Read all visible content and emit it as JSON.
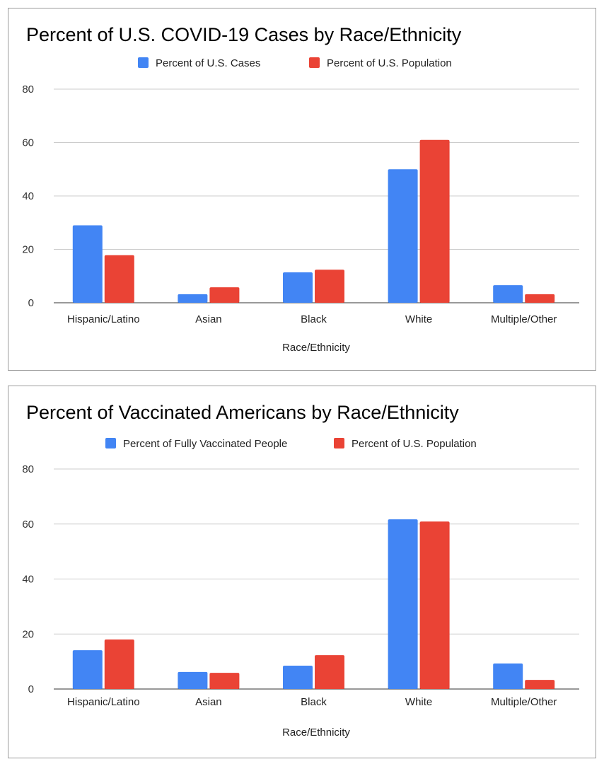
{
  "chart_data": [
    {
      "type": "bar",
      "title": "Percent of U.S. COVID-19 Cases by Race/Ethnicity",
      "xlabel": "Race/Ethnicity",
      "ylabel": "",
      "ylim": [
        0,
        80
      ],
      "yticks": [
        "0",
        "20",
        "40",
        "60",
        "80"
      ],
      "grid": true,
      "legend": "top",
      "categories": [
        "Hispanic/Latino",
        "Asian",
        "Black",
        "White",
        "Multiple/Other"
      ],
      "series": [
        {
          "name": "Percent of U.S. Cases",
          "color": "#4285f4",
          "values": [
            29,
            3.2,
            11.4,
            50,
            6.6
          ]
        },
        {
          "name": "Percent of U.S. Population",
          "color": "#ea4335",
          "values": [
            17.8,
            5.8,
            12.4,
            61,
            3.2
          ]
        }
      ]
    },
    {
      "type": "bar",
      "title": "Percent of Vaccinated Americans by Race/Ethnicity",
      "xlabel": "Race/Ethnicity",
      "ylabel": "",
      "ylim": [
        0,
        80
      ],
      "yticks": [
        "0",
        "20",
        "40",
        "60",
        "80"
      ],
      "grid": true,
      "legend": "top",
      "categories": [
        "Hispanic/Latino",
        "Asian",
        "Black",
        "White",
        "Multiple/Other"
      ],
      "series": [
        {
          "name": "Percent of Fully Vaccinated People",
          "color": "#4285f4",
          "values": [
            14.1,
            6.2,
            8.5,
            61.7,
            9.3
          ]
        },
        {
          "name": "Percent of U.S. Population",
          "color": "#ea4335",
          "values": [
            18,
            5.9,
            12.3,
            60.9,
            3.3
          ]
        }
      ]
    }
  ]
}
